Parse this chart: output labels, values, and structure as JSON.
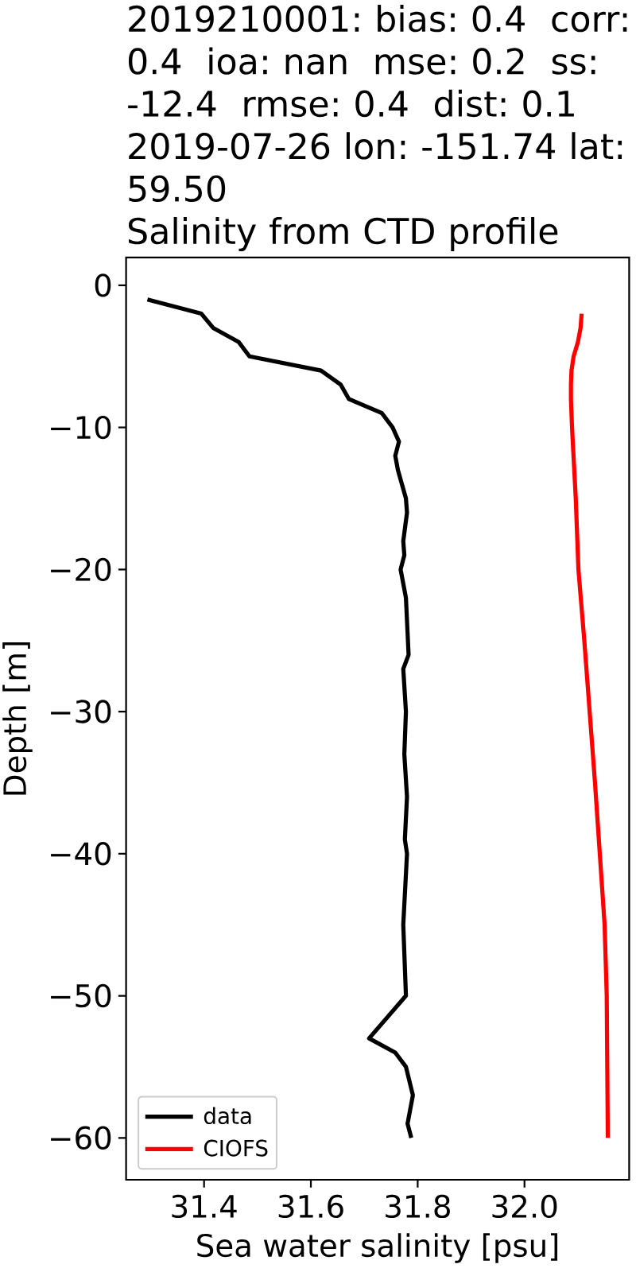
{
  "chart_data": {
    "type": "line",
    "title": "2019210001: bias: 0.4  corr: 0.4  ioa: nan  mse: 0.2  ss: -12.4  rmse: 0.4  dist: 0.1",
    "subtitle": "2019-07-26 lon: -151.74 lat: 59.50",
    "annotations": [
      "Salinity from CTD profile"
    ],
    "xlabel": "Sea water salinity [psu]",
    "ylabel": "Depth [m]",
    "xlim": [
      31.254,
      32.196
    ],
    "ylim": [
      -62.95,
      1.95
    ],
    "xticks": [
      31.4,
      31.6,
      31.8,
      {
        "value": 32.0,
        "label": "32.0"
      }
    ],
    "yticks": [
      {
        "value": -60,
        "label": "−60"
      },
      {
        "value": -50,
        "label": "−50"
      },
      {
        "value": -40,
        "label": "−40"
      },
      {
        "value": -30,
        "label": "−30"
      },
      {
        "value": -20,
        "label": "−20"
      },
      {
        "value": -10,
        "label": "−10"
      },
      0
    ],
    "legend": "bottom left",
    "series": [
      {
        "name": "data",
        "color": "#000000",
        "x": [
          31.294,
          31.395,
          31.417,
          31.465,
          31.485,
          31.619,
          31.656,
          31.671,
          31.733,
          31.753,
          31.765,
          31.758,
          31.763,
          31.778,
          31.78,
          31.773,
          31.775,
          31.768,
          31.778,
          31.783,
          31.773,
          31.778,
          31.775,
          31.78,
          31.776,
          31.78,
          31.773,
          31.778,
          31.709,
          31.758,
          31.778,
          31.791,
          31.781,
          31.788
        ],
        "values": [
          -1,
          -2,
          -3,
          -4,
          -5,
          -6,
          -7,
          -8,
          -9,
          -10,
          -11,
          -12,
          -13,
          -15,
          -16,
          -18,
          -19,
          -20,
          -22,
          -26,
          -27,
          -30,
          -33,
          -36,
          -39,
          -40,
          -45,
          -50,
          -53,
          -54,
          -55,
          -57,
          -59,
          -60
        ]
      },
      {
        "name": "CIOFS",
        "color": "#ff0000",
        "x": [
          32.107,
          32.105,
          32.1,
          32.092,
          32.088,
          32.087,
          32.087,
          32.089,
          32.096,
          32.101,
          32.112,
          32.122,
          32.132,
          32.141,
          32.15,
          32.154,
          32.155,
          32.156
        ],
        "values": [
          -2,
          -3,
          -4,
          -5,
          -6,
          -7,
          -8,
          -10,
          -15,
          -20,
          -25,
          -30,
          -35,
          -40,
          -45,
          -50,
          -55,
          -60
        ]
      }
    ]
  }
}
